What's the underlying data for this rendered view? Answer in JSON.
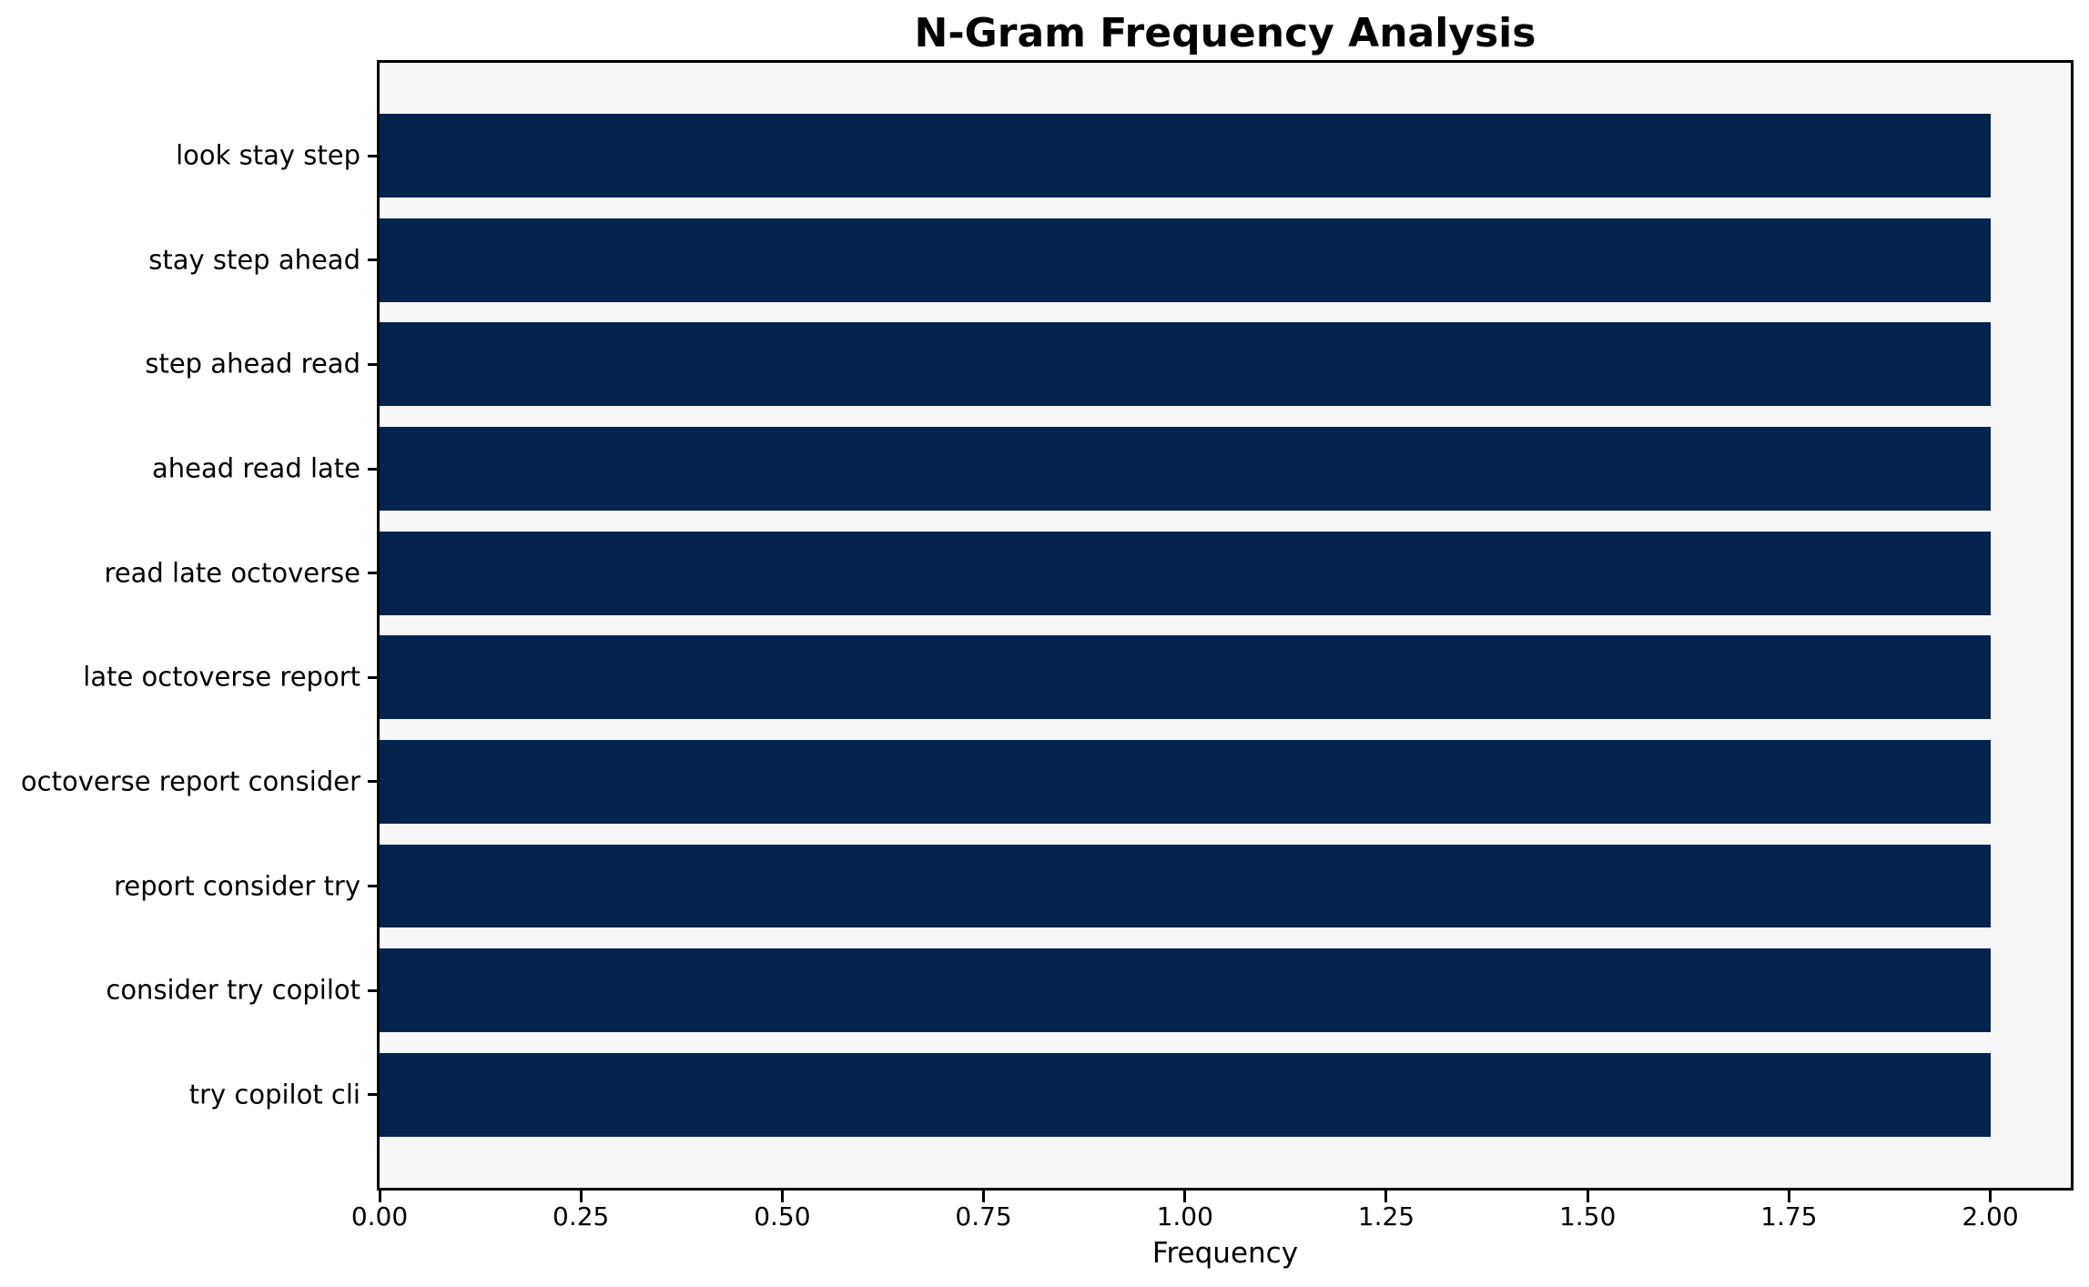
{
  "figure": {
    "background": "#ffffff",
    "plot_background": "#f7f7f7",
    "spine_color": "#000000",
    "text_color": "#000000"
  },
  "chart_data": {
    "type": "bar",
    "orientation": "horizontal",
    "title": "N-Gram Frequency Analysis",
    "xlabel": "Frequency",
    "ylabel": "",
    "categories": [
      "look stay step",
      "stay step ahead",
      "step ahead read",
      "ahead read late",
      "read late octoverse",
      "late octoverse report",
      "octoverse report consider",
      "report consider try",
      "consider try copilot",
      "try copilot cli"
    ],
    "values": [
      2,
      2,
      2,
      2,
      2,
      2,
      2,
      2,
      2,
      2
    ],
    "xlim": [
      0,
      2.1
    ],
    "bar_width_fraction": 0.8,
    "xticks": {
      "values": [
        0,
        0.25,
        0.5,
        0.75,
        1.0,
        1.25,
        1.5,
        1.75,
        2.0
      ],
      "labels": [
        "0.00",
        "0.25",
        "0.50",
        "0.75",
        "1.00",
        "1.25",
        "1.50",
        "1.75",
        "2.00"
      ]
    },
    "bar_color": "#04234f",
    "grid": false,
    "legend": null
  }
}
